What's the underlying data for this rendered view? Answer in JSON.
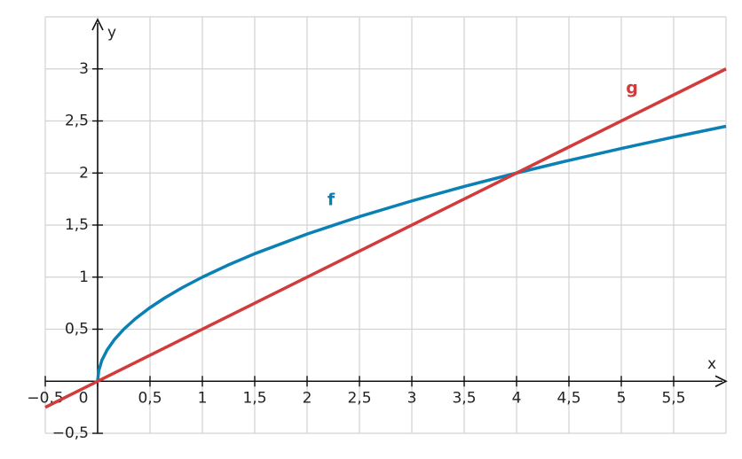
{
  "chart_data": {
    "type": "line",
    "xlabel": "x",
    "ylabel": "y",
    "xlim": [
      -0.5,
      6
    ],
    "ylim": [
      -0.5,
      3.5
    ],
    "xticks": [
      {
        "value": -0.5,
        "label": "−0,5"
      },
      0,
      {
        "value": 0.5,
        "label": "0,5"
      },
      1,
      {
        "value": 1.5,
        "label": "1,5"
      },
      2,
      {
        "value": 2.5,
        "label": "2,5"
      },
      3,
      {
        "value": 3.5,
        "label": "3,5"
      },
      4,
      {
        "value": 4.5,
        "label": "4,5"
      },
      5,
      {
        "value": 5.5,
        "label": "5,5"
      }
    ],
    "yticks": [
      {
        "value": -0.5,
        "label": "−0,5"
      },
      {
        "value": 0.5,
        "label": "0,5"
      },
      1,
      {
        "value": 1.5,
        "label": "1,5"
      },
      2,
      {
        "value": 2.5,
        "label": "2,5"
      },
      3
    ],
    "grid": true,
    "series": [
      {
        "name": "f",
        "color": "#0a80b5",
        "x": [
          0,
          0.01,
          0.04,
          0.09,
          0.16,
          0.25,
          0.36,
          0.49,
          0.64,
          0.81,
          1,
          1.25,
          1.5,
          2,
          2.5,
          3,
          3.5,
          4,
          4.5,
          5,
          5.5,
          6
        ],
        "values": [
          0,
          0.1,
          0.2,
          0.3,
          0.4,
          0.5,
          0.6,
          0.7,
          0.8,
          0.9,
          1,
          1.118,
          1.225,
          1.414,
          1.581,
          1.732,
          1.871,
          2,
          2.121,
          2.236,
          2.345,
          2.449
        ]
      },
      {
        "name": "g",
        "color": "#d23b3b",
        "x": [
          -0.5,
          6
        ],
        "values": [
          -0.25,
          3
        ]
      }
    ]
  }
}
